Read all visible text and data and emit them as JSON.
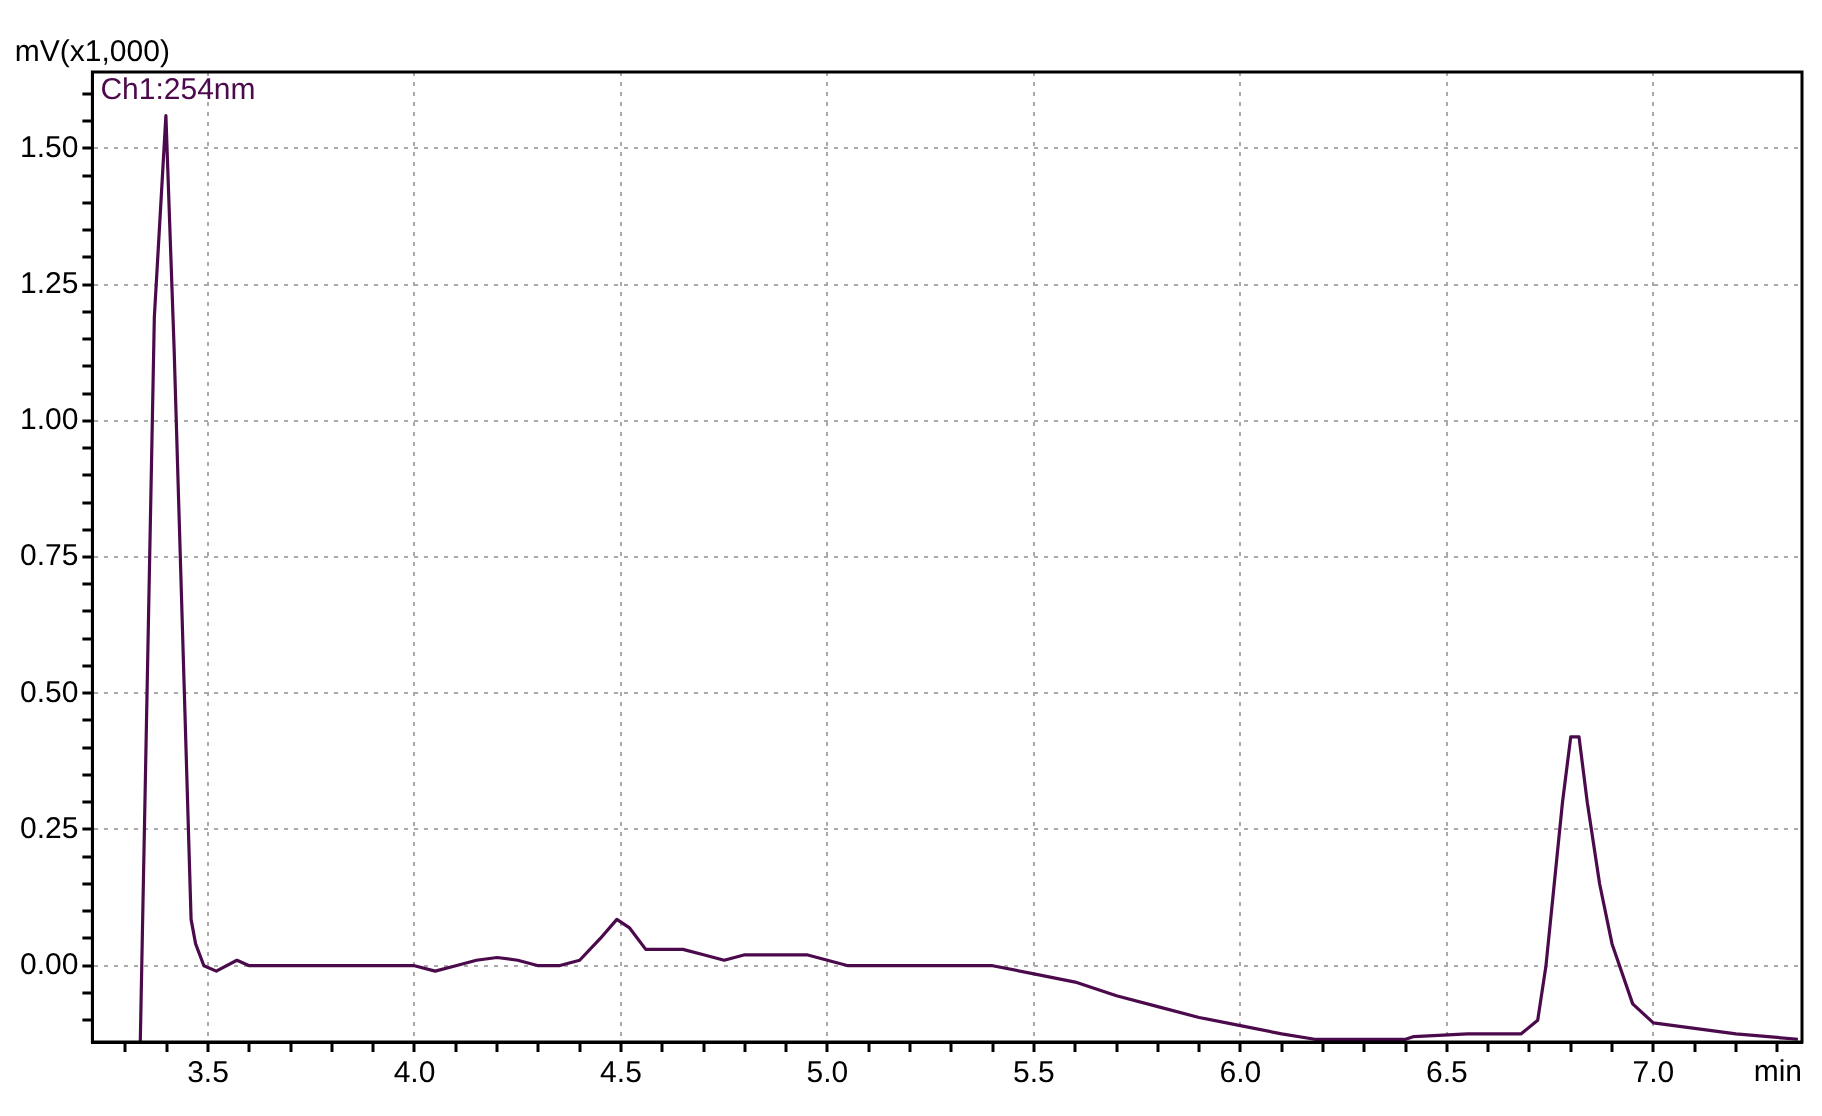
{
  "chart_data": {
    "type": "line",
    "xlabel": "min",
    "ylabel": "mV(x1,000)",
    "annotations": [
      "Ch1:254nm"
    ],
    "x": [
      3.336,
      3.37,
      3.398,
      3.418,
      3.459,
      3.47,
      3.49,
      3.52,
      3.57,
      3.6,
      4.0,
      4.05,
      4.1,
      4.15,
      4.2,
      4.25,
      4.3,
      4.35,
      4.4,
      4.45,
      4.49,
      4.52,
      4.56,
      4.65,
      4.7,
      4.75,
      4.8,
      4.95,
      5.0,
      5.05,
      5.4,
      5.5,
      5.6,
      5.7,
      5.8,
      5.9,
      6.0,
      6.1,
      6.18,
      6.4,
      6.42,
      6.55,
      6.68,
      6.72,
      6.74,
      6.76,
      6.78,
      6.8,
      6.82,
      6.84,
      6.87,
      6.9,
      6.95,
      7.0,
      7.1,
      7.2,
      7.35
    ],
    "series": [
      {
        "color": "#4b0a4b",
        "values": [
          -0.14,
          1.19,
          1.56,
          1.13,
          0.085,
          0.04,
          0.0,
          -0.01,
          0.01,
          0.0,
          0.0,
          -0.01,
          0.0,
          0.01,
          0.015,
          0.01,
          0.0,
          0.0,
          0.01,
          0.05,
          0.085,
          0.07,
          0.03,
          0.03,
          0.02,
          0.01,
          0.02,
          0.02,
          0.01,
          0.0,
          0.0,
          -0.015,
          -0.03,
          -0.055,
          -0.075,
          -0.095,
          -0.11,
          -0.125,
          -0.135,
          -0.135,
          -0.13,
          -0.125,
          -0.125,
          -0.1,
          0.0,
          0.15,
          0.3,
          0.42,
          0.42,
          0.3,
          0.15,
          0.04,
          -0.07,
          -0.105,
          -0.115,
          -0.125,
          -0.135
        ]
      }
    ],
    "xlim": [
      3.22,
      7.36
    ],
    "ylim": [
      -0.14,
      1.64
    ],
    "xticks": [
      {
        "value": 3.3,
        "label": null
      },
      {
        "value": 3.4,
        "label": null
      },
      {
        "value": 3.5,
        "label": "3.5"
      },
      {
        "value": 3.6,
        "label": null
      },
      {
        "value": 3.7,
        "label": null
      },
      {
        "value": 3.8,
        "label": null
      },
      {
        "value": 3.9,
        "label": null
      },
      {
        "value": 4,
        "label": "4.0"
      },
      {
        "value": 4.1,
        "label": null
      },
      {
        "value": 4.2,
        "label": null
      },
      {
        "value": 4.3,
        "label": null
      },
      {
        "value": 4.4,
        "label": null
      },
      {
        "value": 4.5,
        "label": "4.5"
      },
      {
        "value": 4.6,
        "label": null
      },
      {
        "value": 4.7,
        "label": null
      },
      {
        "value": 4.8,
        "label": null
      },
      {
        "value": 4.9,
        "label": null
      },
      {
        "value": 5,
        "label": "5.0"
      },
      {
        "value": 5.1,
        "label": null
      },
      {
        "value": 5.2,
        "label": null
      },
      {
        "value": 5.3,
        "label": null
      },
      {
        "value": 5.4,
        "label": null
      },
      {
        "value": 5.5,
        "label": "5.5"
      },
      {
        "value": 5.6,
        "label": null
      },
      {
        "value": 5.7,
        "label": null
      },
      {
        "value": 5.8,
        "label": null
      },
      {
        "value": 5.9,
        "label": null
      },
      {
        "value": 6,
        "label": "6.0"
      },
      {
        "value": 6.1,
        "label": null
      },
      {
        "value": 6.2,
        "label": null
      },
      {
        "value": 6.3,
        "label": null
      },
      {
        "value": 6.4,
        "label": null
      },
      {
        "value": 6.5,
        "label": "6.5"
      },
      {
        "value": 6.6,
        "label": null
      },
      {
        "value": 6.7,
        "label": null
      },
      {
        "value": 6.8,
        "label": null
      },
      {
        "value": 6.9,
        "label": null
      },
      {
        "value": 7,
        "label": "7.0"
      },
      {
        "value": 7.1,
        "label": null
      },
      {
        "value": 7.2,
        "label": null
      },
      {
        "value": 7.3,
        "label": null
      }
    ],
    "yticks": [
      {
        "value": -0.1,
        "label": null
      },
      {
        "value": -0.05,
        "label": null
      },
      {
        "value": 0,
        "label": "0.00"
      },
      {
        "value": 0.05,
        "label": null
      },
      {
        "value": 0.1,
        "label": null
      },
      {
        "value": 0.15,
        "label": null
      },
      {
        "value": 0.2,
        "label": null
      },
      {
        "value": 0.25,
        "label": "0.25"
      },
      {
        "value": 0.3,
        "label": null
      },
      {
        "value": 0.35,
        "label": null
      },
      {
        "value": 0.4,
        "label": null
      },
      {
        "value": 0.45,
        "label": null
      },
      {
        "value": 0.5,
        "label": "0.50"
      },
      {
        "value": 0.55,
        "label": null
      },
      {
        "value": 0.6,
        "label": null
      },
      {
        "value": 0.65,
        "label": null
      },
      {
        "value": 0.7,
        "label": null
      },
      {
        "value": 0.75,
        "label": "0.75"
      },
      {
        "value": 0.8,
        "label": null
      },
      {
        "value": 0.85,
        "label": null
      },
      {
        "value": 0.9,
        "label": null
      },
      {
        "value": 0.95,
        "label": null
      },
      {
        "value": 1,
        "label": "1.00"
      },
      {
        "value": 1.05,
        "label": null
      },
      {
        "value": 1.1,
        "label": null
      },
      {
        "value": 1.15,
        "label": null
      },
      {
        "value": 1.2,
        "label": null
      },
      {
        "value": 1.25,
        "label": "1.25"
      },
      {
        "value": 1.3,
        "label": null
      },
      {
        "value": 1.35,
        "label": null
      },
      {
        "value": 1.4,
        "label": null
      },
      {
        "value": 1.45,
        "label": null
      },
      {
        "value": 1.5,
        "label": "1.50"
      },
      {
        "value": 1.55,
        "label": null
      },
      {
        "value": 1.6,
        "label": null
      }
    ],
    "grid": true,
    "marker": "none",
    "line_style": "solid",
    "legend": false
  }
}
